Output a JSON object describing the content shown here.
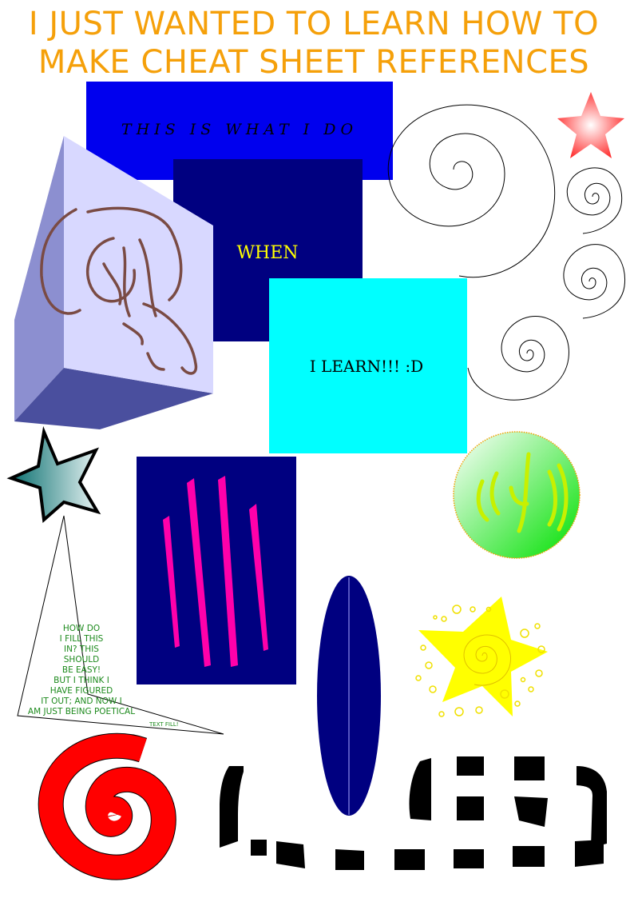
{
  "title": {
    "line1": "I JUST WANTED TO LEARN HOW TO",
    "line2": "MAKE CHEAT SHEET REFERENCES"
  },
  "boxes": {
    "box1_text": "THIS IS WHAT I DO",
    "box2_text": "WHEN",
    "box3_text": "I LEARN!!! :D"
  },
  "poem": {
    "lines": [
      "HOW DO",
      "I FILL THIS",
      "IN? THIS",
      "SHOULD",
      "BE EASY!",
      "BUT I THINK I",
      "HAVE FIGURED",
      "IT OUT; AND NOW I",
      "AM JUST BEING POETICAL"
    ],
    "footer": "TEXT FILL!"
  },
  "colors": {
    "title": "#f5a00a",
    "blue_box": "#0000ee",
    "navy_box": "#000080",
    "cyan_box": "#00ffff",
    "magenta_stroke": "#ff00aa",
    "yellow_star": "#ffff00",
    "red_spiral": "#ff0000",
    "poem_text": "#1d8a1d"
  }
}
